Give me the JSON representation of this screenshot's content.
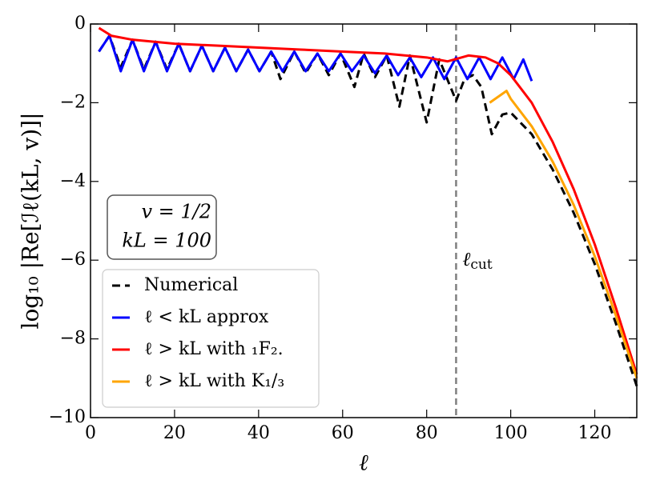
{
  "chart_data": {
    "type": "line",
    "xlabel": "ℓ",
    "ylabel": "log₁₀ |Re[ℐℓ(kL, v)]|",
    "xlim": [
      0,
      130
    ],
    "ylim": [
      -10,
      0
    ],
    "xticks": [
      0,
      20,
      40,
      60,
      80,
      100,
      120
    ],
    "yticks": [
      {
        "value": -10,
        "label": "−10"
      },
      {
        "value": -8,
        "label": "−8"
      },
      {
        "value": -6,
        "label": "−6"
      },
      {
        "value": -4,
        "label": "−4"
      },
      {
        "value": -2,
        "label": "−2"
      },
      0
    ],
    "legend": "lower left",
    "annotation": [
      "v = 1/2",
      "kL = 100"
    ],
    "vline": {
      "x": 87,
      "label": "ℓ",
      "sub": "cut",
      "color": "#808080"
    },
    "series": [
      {
        "name": "Numerical",
        "color": "#000000",
        "dash": true,
        "x": [
          2,
          4.5,
          7.2,
          10,
          12.7,
          15.5,
          18.2,
          21,
          23.7,
          26.5,
          29.2,
          32,
          34.7,
          37.5,
          40.2,
          43,
          45.2,
          48.5,
          51.2,
          54,
          56.7,
          59.5,
          62.8,
          65,
          67.7,
          70.5,
          73.5,
          76,
          80,
          83,
          87,
          89,
          91,
          93,
          95.5,
          98,
          100,
          105,
          110,
          115,
          120,
          125,
          130
        ],
        "values": [
          -0.7,
          -0.3,
          -1.1,
          -0.4,
          -1.15,
          -0.45,
          -1.15,
          -0.5,
          -1.2,
          -0.55,
          -1.2,
          -0.6,
          -1.2,
          -0.65,
          -1.2,
          -0.7,
          -1.4,
          -0.7,
          -1.25,
          -0.75,
          -1.3,
          -0.75,
          -1.6,
          -0.75,
          -1.35,
          -0.8,
          -2.1,
          -0.8,
          -2.5,
          -0.9,
          -1.95,
          -1.4,
          -1.3,
          -1.6,
          -2.8,
          -2.3,
          -2.25,
          -2.8,
          -3.7,
          -4.8,
          -6.1,
          -7.6,
          -9.2
        ]
      },
      {
        "name": "ℓ < kL approx",
        "color": "#0000ff",
        "dash": false,
        "x": [
          2,
          4.5,
          7.2,
          10,
          12.7,
          15.5,
          18.2,
          21,
          23.7,
          26.5,
          29.2,
          32,
          34.7,
          37.5,
          40.2,
          43,
          45.7,
          48.5,
          51.2,
          54,
          56.7,
          59.5,
          62.2,
          65,
          67.7,
          70.5,
          73.2,
          76,
          78.7,
          81.5,
          84.2,
          87,
          89.7,
          92.5,
          95.2,
          98,
          100.7,
          103,
          105
        ],
        "values": [
          -0.7,
          -0.3,
          -1.2,
          -0.4,
          -1.2,
          -0.45,
          -1.2,
          -0.5,
          -1.2,
          -0.55,
          -1.2,
          -0.6,
          -1.2,
          -0.65,
          -1.2,
          -0.7,
          -1.2,
          -0.7,
          -1.2,
          -0.75,
          -1.2,
          -0.75,
          -1.2,
          -0.8,
          -1.25,
          -0.8,
          -1.3,
          -0.85,
          -1.35,
          -0.85,
          -1.4,
          -0.85,
          -1.4,
          -0.85,
          -1.4,
          -0.85,
          -1.4,
          -0.9,
          -1.45
        ]
      },
      {
        "name": "ℓ > kL with ₁F₂.",
        "color": "#ff0000",
        "dash": false,
        "x": [
          2,
          5,
          10,
          20,
          30,
          40,
          50,
          60,
          70,
          80,
          85,
          90,
          94,
          97,
          100,
          105,
          110,
          115,
          120,
          125,
          130
        ],
        "values": [
          -0.1,
          -0.3,
          -0.4,
          -0.5,
          -0.55,
          -0.6,
          -0.65,
          -0.7,
          -0.75,
          -0.85,
          -0.95,
          -0.8,
          -0.85,
          -1.0,
          -1.3,
          -2.0,
          -3.0,
          -4.2,
          -5.6,
          -7.2,
          -8.9
        ]
      },
      {
        "name": "ℓ > kL with K₁/₃",
        "color": "#ffa500",
        "dash": false,
        "x": [
          95,
          97,
          99,
          100,
          105,
          110,
          115,
          120,
          125,
          130
        ],
        "values": [
          -2.0,
          -1.85,
          -1.7,
          -1.9,
          -2.6,
          -3.5,
          -4.6,
          -5.9,
          -7.4,
          -9.0
        ]
      }
    ]
  }
}
